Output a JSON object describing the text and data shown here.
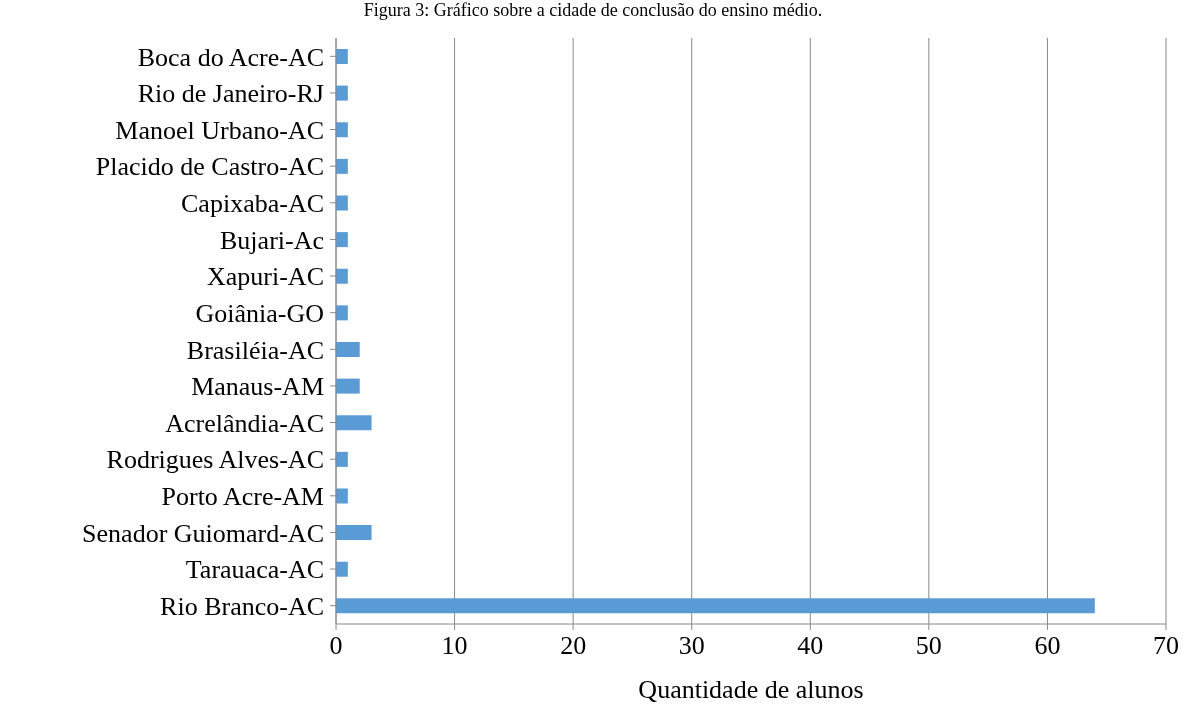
{
  "chart_data": {
    "type": "bar",
    "orientation": "horizontal",
    "title": "Figura 3: Gráfico sobre a cidade de conclusão do ensino médio.",
    "xlabel": "Quantidade de alunos",
    "categories": [
      "Boca do Acre-AC",
      "Rio de Janeiro-RJ",
      "Manoel Urbano-AC",
      "Placido de Castro-AC",
      "Capixaba-AC",
      "Bujari-Ac",
      "Xapuri-AC",
      "Goiânia-GO",
      "Brasiléia-AC",
      "Manaus-AM",
      "Acrelândia-AC",
      "Rodrigues Alves-AC",
      "Porto Acre-AM",
      "Senador Guiomard-AC",
      "Tarauaca-AC",
      "Rio Branco-AC"
    ],
    "values": [
      1,
      1,
      1,
      1,
      1,
      1,
      1,
      1,
      2,
      2,
      3,
      1,
      1,
      3,
      1,
      64
    ],
    "color": "#5b9bd5",
    "xlim": [
      0,
      70
    ],
    "xticks": [
      0,
      10,
      20,
      30,
      40,
      50,
      60,
      70
    ],
    "grid": "x",
    "legend": false
  }
}
